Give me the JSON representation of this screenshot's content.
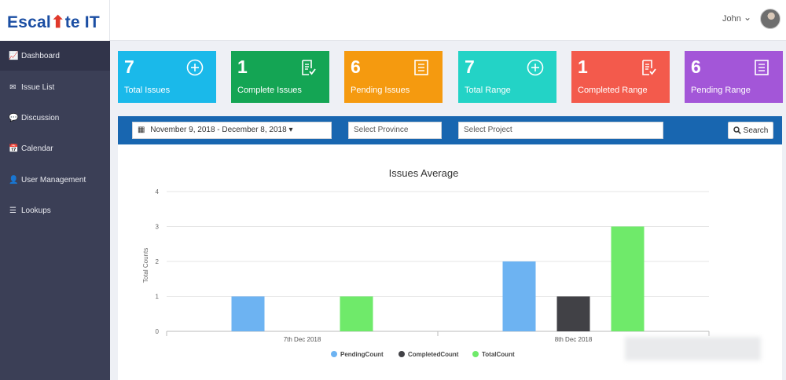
{
  "header": {
    "logo_left": "Escal",
    "logo_arrow": "⬆",
    "logo_right": "te IT",
    "user_name": "John",
    "user_caret": "⌄"
  },
  "sidebar": {
    "items": [
      {
        "label": "Dashboard",
        "icon": "chart-area-icon",
        "glyph": "📈"
      },
      {
        "label": "Issue List",
        "icon": "envelope-icon",
        "glyph": "✉"
      },
      {
        "label": "Discussion",
        "icon": "comments-icon",
        "glyph": "💬"
      },
      {
        "label": "Calendar",
        "icon": "calendar-icon",
        "glyph": "📅"
      },
      {
        "label": "User Management",
        "icon": "user-icon",
        "glyph": "👤"
      },
      {
        "label": "Lookups",
        "icon": "list-icon",
        "glyph": "☰"
      }
    ],
    "active_index": 0
  },
  "cards": [
    {
      "value": "7",
      "label": "Total Issues",
      "color": "#1ab9ea",
      "icon": "plus-circle-icon"
    },
    {
      "value": "1",
      "label": "Complete Issues",
      "color": "#14a554",
      "icon": "checklist-icon"
    },
    {
      "value": "6",
      "label": "Pending Issues",
      "color": "#f59a0f",
      "icon": "list-doc-icon"
    },
    {
      "value": "7",
      "label": "Total Range",
      "color": "#23d3c6",
      "icon": "plus-circle-icon"
    },
    {
      "value": "1",
      "label": "Completed Range",
      "color": "#f35a4c",
      "icon": "checklist-icon"
    },
    {
      "value": "6",
      "label": "Pending Range",
      "color": "#a356d8",
      "icon": "list-doc-icon"
    }
  ],
  "filters": {
    "date_range": "November 9, 2018 - December 8, 2018",
    "date_caret": "▾",
    "province_placeholder": "Select Province",
    "project_placeholder": "Select Project",
    "search_label": "Search"
  },
  "chart_data": {
    "type": "bar",
    "title": "Issues Average",
    "ylabel": "Total Counts",
    "xlabel": "",
    "categories": [
      "7th Dec 2018",
      "8th Dec 2018"
    ],
    "ylim": [
      0,
      4
    ],
    "yticks": [
      "0",
      "1",
      "2",
      "3",
      "4"
    ],
    "grid": true,
    "legend_position": "bottom",
    "series": [
      {
        "name": "PendingCount",
        "values": [
          1,
          2
        ],
        "color": "#6db3f2"
      },
      {
        "name": "CompletedCount",
        "values": [
          0,
          1
        ],
        "color": "#414146"
      },
      {
        "name": "TotalCount",
        "values": [
          1,
          3
        ],
        "color": "#6fea6a"
      }
    ]
  }
}
